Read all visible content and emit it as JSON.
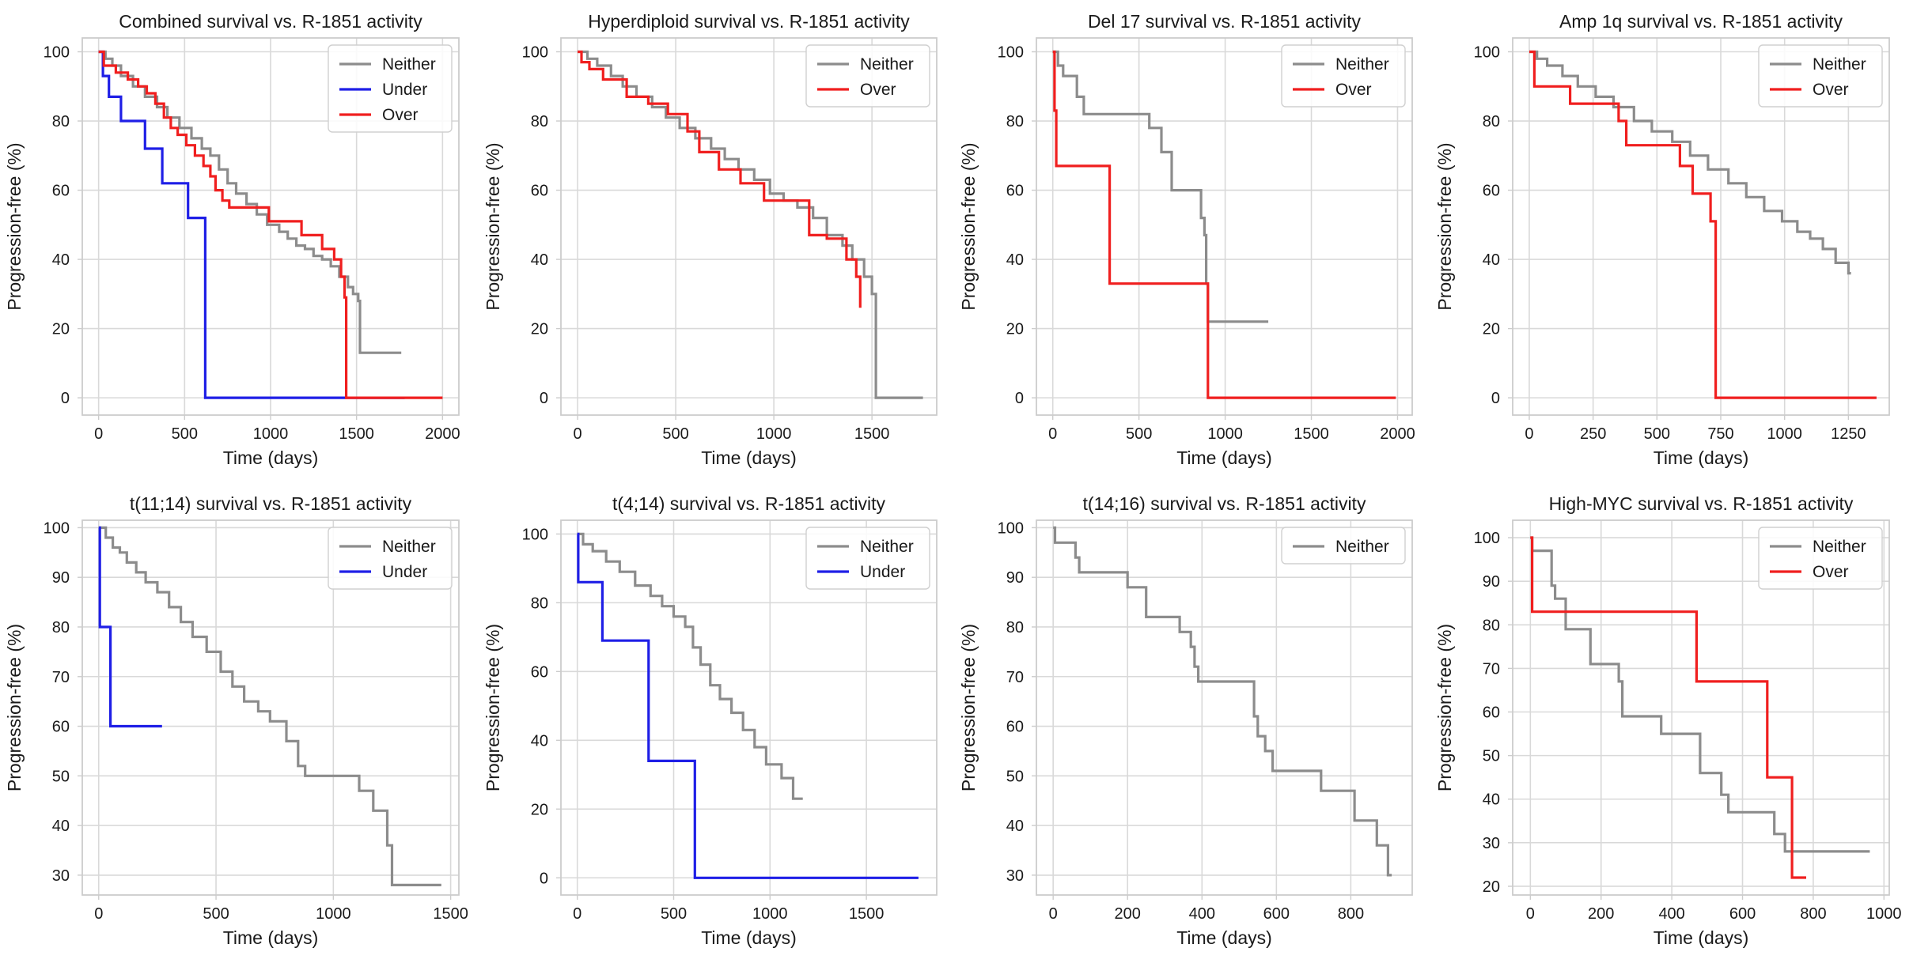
{
  "chart_data": [
    {
      "type": "line",
      "title": "Combined survival vs. R-1851 activity",
      "xlabel": "Time (days)",
      "ylabel": "Progression-free (%)",
      "xlim": [
        -95,
        2095
      ],
      "ylim": [
        -5,
        104
      ],
      "xticks": [
        0,
        500,
        1000,
        1500,
        2000
      ],
      "yticks": [
        0,
        20,
        40,
        60,
        80,
        100
      ],
      "legend": [
        "Neither",
        "Under",
        "Over"
      ],
      "series": [
        {
          "name": "Neither",
          "color": "#8c8c8c",
          "x": [
            0,
            40,
            80,
            130,
            200,
            270,
            340,
            400,
            470,
            540,
            600,
            650,
            700,
            750,
            800,
            860,
            920,
            980,
            1050,
            1100,
            1150,
            1200,
            1250,
            1300,
            1350,
            1400,
            1450,
            1480,
            1510,
            1520,
            1760
          ],
          "y": [
            100,
            98,
            96,
            93,
            90,
            87,
            84,
            81,
            78,
            75,
            72,
            70,
            66,
            62,
            59,
            56,
            53,
            50,
            48,
            46,
            44,
            43,
            41,
            40,
            38,
            35,
            32,
            30,
            28,
            13,
            13
          ]
        },
        {
          "name": "Under",
          "color": "#1f1fe6",
          "x": [
            0,
            25,
            60,
            130,
            270,
            370,
            520,
            620,
            1780
          ],
          "y": [
            100,
            93,
            87,
            80,
            72,
            62,
            52,
            0,
            0
          ]
        },
        {
          "name": "Over",
          "color": "#f01f1f",
          "x": [
            0,
            30,
            100,
            170,
            230,
            280,
            330,
            380,
            420,
            460,
            510,
            560,
            610,
            650,
            680,
            720,
            760,
            850,
            990,
            1180,
            1300,
            1370,
            1410,
            1430,
            1440,
            2000
          ],
          "y": [
            100,
            96,
            94,
            92,
            90,
            88,
            85,
            81,
            78,
            76,
            73,
            70,
            67,
            64,
            60,
            57,
            55,
            55,
            51,
            47,
            43,
            40,
            35,
            29,
            0,
            0
          ]
        }
      ]
    },
    {
      "type": "line",
      "title": "Hyperdiploid survival vs. R-1851 activity",
      "xlabel": "Time (days)",
      "ylabel": "Progression-free (%)",
      "xlim": [
        -85,
        1830
      ],
      "ylim": [
        -5,
        104
      ],
      "xticks": [
        0,
        500,
        1000,
        1500
      ],
      "yticks": [
        0,
        20,
        40,
        60,
        80,
        100
      ],
      "legend": [
        "Neither",
        "Over"
      ],
      "series": [
        {
          "name": "Neither",
          "color": "#8c8c8c",
          "x": [
            0,
            50,
            100,
            170,
            230,
            300,
            380,
            450,
            520,
            600,
            680,
            750,
            820,
            900,
            980,
            1050,
            1120,
            1200,
            1270,
            1350,
            1400,
            1460,
            1500,
            1520,
            1760
          ],
          "y": [
            100,
            98,
            96,
            93,
            90,
            87,
            84,
            81,
            78,
            75,
            72,
            69,
            66,
            63,
            59,
            57,
            55,
            52,
            47,
            44,
            40,
            35,
            30,
            0,
            0
          ]
        },
        {
          "name": "Over",
          "color": "#f01f1f",
          "x": [
            0,
            20,
            60,
            130,
            250,
            360,
            460,
            560,
            620,
            720,
            830,
            950,
            1180,
            1270,
            1370,
            1420,
            1440
          ],
          "y": [
            100,
            97,
            95,
            92,
            87,
            85,
            82,
            77,
            71,
            66,
            62,
            57,
            47,
            46,
            40,
            35,
            26
          ]
        }
      ]
    },
    {
      "type": "line",
      "title": "Del 17 survival vs. R-1851 activity",
      "xlabel": "Time (days)",
      "ylabel": "Progression-free (%)",
      "xlim": [
        -95,
        2085
      ],
      "ylim": [
        -5,
        104
      ],
      "xticks": [
        0,
        500,
        1000,
        1500,
        2000
      ],
      "yticks": [
        0,
        20,
        40,
        60,
        80,
        100
      ],
      "legend": [
        "Neither",
        "Over"
      ],
      "series": [
        {
          "name": "Neither",
          "color": "#8c8c8c",
          "x": [
            0,
            30,
            60,
            140,
            180,
            360,
            560,
            630,
            690,
            860,
            880,
            890,
            900,
            1250
          ],
          "y": [
            100,
            96,
            93,
            87,
            82,
            82,
            78,
            71,
            60,
            52,
            47,
            33,
            22,
            22
          ]
        },
        {
          "name": "Over",
          "color": "#f01f1f",
          "x": [
            0,
            10,
            20,
            330,
            900,
            1990
          ],
          "y": [
            100,
            83,
            67,
            33,
            0,
            0
          ]
        }
      ]
    },
    {
      "type": "line",
      "title": "Amp 1q survival vs. R-1851 activity",
      "xlabel": "Time (days)",
      "ylabel": "Progression-free (%)",
      "xlim": [
        -65,
        1410
      ],
      "ylim": [
        -5,
        104
      ],
      "xticks": [
        0,
        250,
        500,
        750,
        1000,
        1250
      ],
      "yticks": [
        0,
        20,
        40,
        60,
        80,
        100
      ],
      "legend": [
        "Neither",
        "Over"
      ],
      "series": [
        {
          "name": "Neither",
          "color": "#8c8c8c",
          "x": [
            0,
            30,
            70,
            130,
            190,
            260,
            330,
            410,
            480,
            560,
            630,
            700,
            780,
            850,
            920,
            990,
            1050,
            1100,
            1150,
            1200,
            1250,
            1260
          ],
          "y": [
            100,
            98,
            96,
            93,
            90,
            87,
            84,
            80,
            77,
            74,
            70,
            66,
            62,
            58,
            54,
            51,
            48,
            46,
            43,
            39,
            36,
            36
          ]
        },
        {
          "name": "Over",
          "color": "#f01f1f",
          "x": [
            0,
            20,
            160,
            350,
            380,
            590,
            640,
            710,
            730,
            1360
          ],
          "y": [
            100,
            90,
            85,
            80,
            73,
            67,
            59,
            51,
            0,
            0
          ]
        }
      ]
    },
    {
      "type": "line",
      "title": "t(11;14) survival vs. R-1851 activity",
      "xlabel": "Time (days)",
      "ylabel": "Progression-free (%)",
      "xlim": [
        -70,
        1535
      ],
      "ylim": [
        26,
        101.5
      ],
      "xticks": [
        0,
        500,
        1000,
        1500
      ],
      "yticks": [
        30,
        40,
        50,
        60,
        70,
        80,
        90,
        100
      ],
      "legend": [
        "Neither",
        "Under"
      ],
      "series": [
        {
          "name": "Neither",
          "color": "#8c8c8c",
          "x": [
            0,
            30,
            60,
            90,
            120,
            160,
            200,
            250,
            300,
            350,
            400,
            460,
            520,
            570,
            620,
            680,
            730,
            800,
            850,
            880,
            1050,
            1110,
            1170,
            1230,
            1250,
            1460
          ],
          "y": [
            100,
            98,
            96,
            95,
            93,
            91,
            89,
            87,
            84,
            81,
            78,
            75,
            71,
            68,
            65,
            63,
            61,
            57,
            52,
            50,
            50,
            47,
            43,
            36,
            28,
            28
          ]
        },
        {
          "name": "Under",
          "color": "#1f1fe6",
          "x": [
            0,
            5,
            50,
            270
          ],
          "y": [
            100,
            80,
            60,
            60
          ]
        }
      ]
    },
    {
      "type": "line",
      "title": "t(4;14) survival vs. R-1851 activity",
      "xlabel": "Time (days)",
      "ylabel": "Progression-free (%)",
      "xlim": [
        -85,
        1865
      ],
      "ylim": [
        -5,
        104
      ],
      "xticks": [
        0,
        500,
        1000,
        1500
      ],
      "yticks": [
        0,
        20,
        40,
        60,
        80,
        100
      ],
      "legend": [
        "Neither",
        "Under"
      ],
      "series": [
        {
          "name": "Neither",
          "color": "#8c8c8c",
          "x": [
            0,
            30,
            80,
            150,
            220,
            300,
            380,
            440,
            500,
            560,
            600,
            640,
            690,
            740,
            800,
            860,
            920,
            980,
            1060,
            1120,
            1170
          ],
          "y": [
            100,
            97,
            95,
            92,
            89,
            85,
            82,
            79,
            76,
            73,
            67,
            62,
            56,
            52,
            48,
            43,
            38,
            33,
            29,
            23,
            23
          ]
        },
        {
          "name": "Under",
          "color": "#1f1fe6",
          "x": [
            0,
            5,
            130,
            370,
            610,
            1770
          ],
          "y": [
            100,
            86,
            69,
            34,
            0,
            0
          ]
        }
      ]
    },
    {
      "type": "line",
      "title": "t(14;16) survival vs. R-1851 activity",
      "xlabel": "Time (days)",
      "ylabel": "Progression-free (%)",
      "xlim": [
        -45,
        965
      ],
      "ylim": [
        26,
        101.5
      ],
      "xticks": [
        0,
        200,
        400,
        600,
        800
      ],
      "yticks": [
        30,
        40,
        50,
        60,
        70,
        80,
        90,
        100
      ],
      "legend": [
        "Neither"
      ],
      "series": [
        {
          "name": "Neither",
          "color": "#8c8c8c",
          "x": [
            0,
            5,
            60,
            70,
            200,
            250,
            340,
            370,
            380,
            390,
            400,
            540,
            550,
            570,
            590,
            720,
            810,
            870,
            900,
            910
          ],
          "y": [
            100,
            97,
            94,
            91,
            88,
            82,
            79,
            76,
            72,
            69,
            69,
            62,
            58,
            55,
            51,
            47,
            41,
            36,
            30,
            30
          ]
        }
      ]
    },
    {
      "type": "line",
      "title": "High-MYC survival vs. R-1851 activity",
      "xlabel": "Time (days)",
      "ylabel": "Progression-free (%)",
      "xlim": [
        -50,
        1015
      ],
      "ylim": [
        18,
        104
      ],
      "xticks": [
        0,
        200,
        400,
        600,
        800,
        1000
      ],
      "yticks": [
        20,
        30,
        40,
        50,
        60,
        70,
        80,
        90,
        100
      ],
      "legend": [
        "Neither",
        "Over"
      ],
      "series": [
        {
          "name": "Neither",
          "color": "#8c8c8c",
          "x": [
            0,
            5,
            60,
            70,
            100,
            170,
            250,
            260,
            370,
            480,
            540,
            560,
            690,
            720,
            960
          ],
          "y": [
            100,
            97,
            89,
            86,
            79,
            71,
            67,
            59,
            55,
            46,
            41,
            37,
            32,
            28,
            28
          ]
        },
        {
          "name": "Over",
          "color": "#f01f1f",
          "x": [
            0,
            5,
            470,
            670,
            740,
            780
          ],
          "y": [
            100,
            83,
            67,
            45,
            22,
            22
          ]
        }
      ]
    }
  ]
}
